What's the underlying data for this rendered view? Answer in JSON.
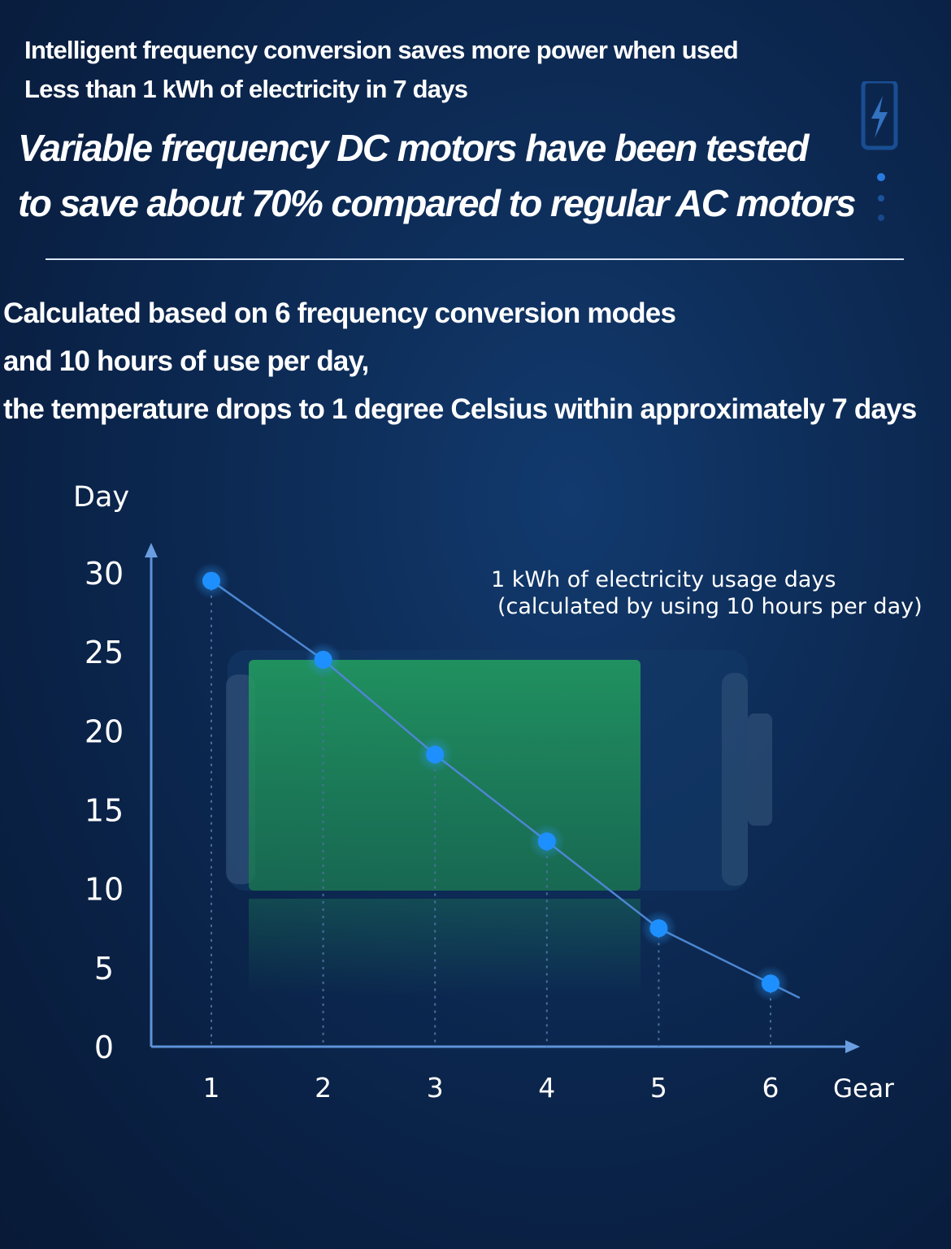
{
  "header": {
    "line1": "Intelligent frequency conversion saves more power when used",
    "line2": "Less than 1 kWh of electricity in 7 days",
    "headline1": "Variable frequency DC motors have been tested",
    "headline2": "to save about 70% compared to regular AC motors"
  },
  "calc_text": {
    "line1": "Calculated based on 6 frequency conversion modes",
    "line2": "and 10 hours of use per day,",
    "line3": "the temperature drops to 1 degree Celsius within approximately 7 days"
  },
  "icons": {
    "decor_battery": "battery-charging-icon",
    "decor_dots": "dots-icon",
    "chart_bg": "battery-icon"
  },
  "colors": {
    "background": "#0d2c57",
    "accent_point": "#1e8fff",
    "line": "#5d93d8",
    "battery_fill": "#1f8a56"
  },
  "chart_data": {
    "type": "line",
    "ylabel": "Day",
    "xlabel": "Gear",
    "annotation_line1": "1 kWh of electricity usage days",
    "annotation_line2": "(calculated by using 10 hours per day)",
    "x": [
      1,
      2,
      3,
      4,
      5,
      6
    ],
    "x_ticks": [
      "1",
      "2",
      "3",
      "4",
      "5",
      "6"
    ],
    "y_ticks": [
      "0",
      "5",
      "10",
      "15",
      "20",
      "25",
      "30"
    ],
    "ylim": [
      0,
      30
    ],
    "series": [
      {
        "values": [
          29.5,
          24.5,
          18.5,
          13,
          7.5,
          4
        ]
      }
    ],
    "grid": false
  }
}
